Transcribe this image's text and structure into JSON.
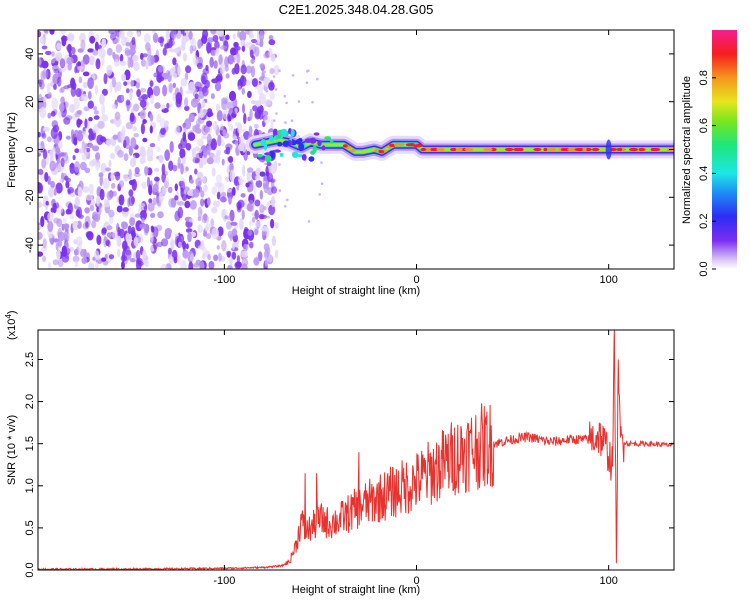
{
  "title": "C2E1.2025.348.04.28.G05",
  "chart_data": [
    {
      "type": "heatmap",
      "name": "spectrogram",
      "xlabel": "Height of straight line (km)",
      "ylabel": "Frequency (Hz)",
      "xlim": [
        -197,
        134
      ],
      "ylim": [
        -50,
        50
      ],
      "x_ticks": [
        "-100",
        "0",
        "100"
      ],
      "y_ticks": [
        "-40",
        "-20",
        "0",
        "20",
        "40"
      ],
      "noise_region_x": [
        -197,
        -80
      ],
      "track": [
        {
          "x": -84,
          "y": 2
        },
        {
          "x": -78,
          "y": 3
        },
        {
          "x": -72,
          "y": 4
        },
        {
          "x": -66,
          "y": 3
        },
        {
          "x": -60,
          "y": 1
        },
        {
          "x": -55,
          "y": 3
        },
        {
          "x": -50,
          "y": 2
        },
        {
          "x": -45,
          "y": 2
        },
        {
          "x": -38,
          "y": 2
        },
        {
          "x": -32,
          "y": -1
        },
        {
          "x": -28,
          "y": -1
        },
        {
          "x": -22,
          "y": 0
        },
        {
          "x": -18,
          "y": -1
        },
        {
          "x": -12,
          "y": 2
        },
        {
          "x": -4,
          "y": 2
        },
        {
          "x": 0,
          "y": 2
        },
        {
          "x": 3,
          "y": 0
        },
        {
          "x": 20,
          "y": 0
        },
        {
          "x": 50,
          "y": 0
        },
        {
          "x": 80,
          "y": 0
        },
        {
          "x": 100,
          "y": 0
        },
        {
          "x": 134,
          "y": 0
        }
      ],
      "colorbar": {
        "label": "Normalized spectral amplitude",
        "range": [
          0,
          1
        ],
        "ticks": [
          "0.0",
          "0.2",
          "0.4",
          "0.6",
          "0.8"
        ]
      }
    },
    {
      "type": "line",
      "name": "snr",
      "xlabel": "Height of straight line (km)",
      "ylabel": "SNR (10 * v/v)",
      "multiplier_label": "(x10",
      "multiplier_exp": "4",
      "xlim": [
        -197,
        134
      ],
      "ylim": [
        0,
        2.85
      ],
      "x_ticks": [
        "-100",
        "0",
        "100"
      ],
      "y_ticks": [
        "0.0",
        "0.5",
        "1.0",
        "1.5",
        "2.0",
        "2.5"
      ],
      "line_color": "#e8322e",
      "series": [
        {
          "x": [
            -197,
            -150,
            -100,
            -80,
            -70,
            -66,
            -62,
            -60,
            -58,
            -55,
            -50,
            -45,
            -40,
            -30,
            -20,
            -10,
            0,
            10,
            20,
            30,
            40,
            50,
            58,
            70,
            80,
            90,
            95,
            100,
            102,
            103,
            104,
            105,
            106,
            110,
            120,
            134
          ],
          "y": [
            0.01,
            0.01,
            0.02,
            0.03,
            0.05,
            0.1,
            0.35,
            0.6,
            0.45,
            0.5,
            0.6,
            0.55,
            0.6,
            0.75,
            0.85,
            0.95,
            1.05,
            1.2,
            1.35,
            1.45,
            1.5,
            1.55,
            1.58,
            1.52,
            1.55,
            1.55,
            1.6,
            1.4,
            1.2,
            2.8,
            0.1,
            2.4,
            1.55,
            1.5,
            1.5,
            1.48
          ]
        }
      ]
    }
  ]
}
